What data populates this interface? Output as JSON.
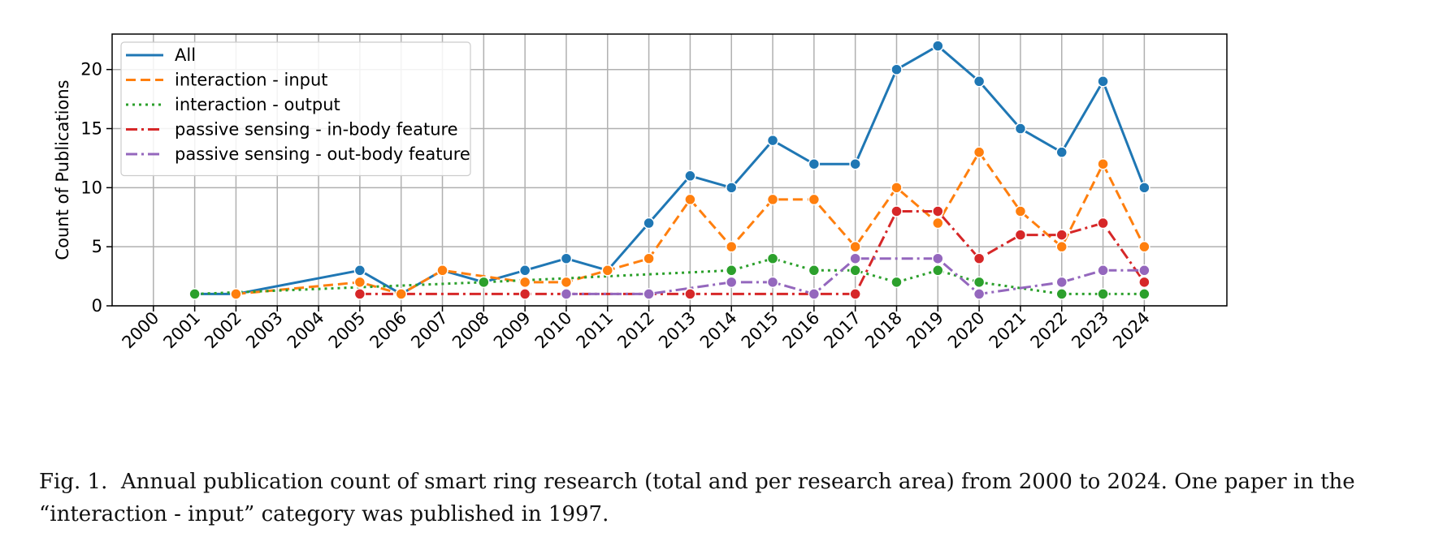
{
  "chart_data": {
    "type": "line",
    "title": "",
    "xlabel": "",
    "ylabel": "Count of Publications",
    "x_ticks": [
      "2000",
      "2001",
      "2002",
      "2003",
      "2004",
      "2005",
      "2006",
      "2007",
      "2008",
      "2009",
      "2010",
      "2011",
      "2012",
      "2013",
      "2014",
      "2015",
      "2016",
      "2017",
      "2018",
      "2019",
      "2020",
      "2021",
      "2022",
      "2023",
      "2024"
    ],
    "xlim": [
      1999,
      2026
    ],
    "ylim": [
      0,
      23
    ],
    "y_ticks": [
      "0",
      "5",
      "10",
      "15",
      "20"
    ],
    "grid": true,
    "legend_position": "upper-left",
    "series": [
      {
        "name": "All",
        "color": "#1f77b4",
        "dash": "solid",
        "x": [
          2001,
          2002,
          2005,
          2006,
          2007,
          2008,
          2009,
          2010,
          2011,
          2012,
          2013,
          2014,
          2015,
          2016,
          2017,
          2018,
          2019,
          2020,
          2021,
          2022,
          2023,
          2024
        ],
        "y": [
          1,
          1,
          3,
          1,
          3,
          2,
          3,
          4,
          3,
          7,
          11,
          10,
          14,
          12,
          12,
          20,
          22,
          19,
          15,
          13,
          19,
          10
        ]
      },
      {
        "name": "interaction - input",
        "color": "#ff7f0e",
        "dash": "dashed",
        "x": [
          2002,
          2005,
          2006,
          2007,
          2009,
          2010,
          2011,
          2012,
          2013,
          2014,
          2015,
          2016,
          2017,
          2018,
          2019,
          2020,
          2021,
          2022,
          2023,
          2024
        ],
        "y": [
          1,
          2,
          1,
          3,
          2,
          2,
          3,
          4,
          9,
          5,
          9,
          9,
          5,
          10,
          7,
          13,
          8,
          5,
          12,
          5
        ]
      },
      {
        "name": "interaction - output",
        "color": "#2ca02c",
        "dash": "dotted",
        "x": [
          2001,
          2008,
          2014,
          2015,
          2016,
          2017,
          2018,
          2019,
          2020,
          2022,
          2023,
          2024
        ],
        "y": [
          1,
          2,
          3,
          4,
          3,
          3,
          2,
          3,
          2,
          1,
          1,
          1
        ]
      },
      {
        "name": "passive sensing - in-body feature",
        "color": "#d62728",
        "dash": "dashdot",
        "x": [
          2005,
          2009,
          2013,
          2017,
          2018,
          2019,
          2020,
          2021,
          2022,
          2023,
          2024
        ],
        "y": [
          1,
          1,
          1,
          1,
          8,
          8,
          4,
          6,
          6,
          7,
          2
        ]
      },
      {
        "name": "passive sensing - out-body feature",
        "color": "#9467bd",
        "dash": "dashdot",
        "x": [
          2010,
          2012,
          2014,
          2015,
          2016,
          2017,
          2019,
          2020,
          2022,
          2023,
          2024
        ],
        "y": [
          1,
          1,
          2,
          2,
          1,
          4,
          4,
          1,
          2,
          3,
          3
        ]
      }
    ]
  },
  "caption": {
    "line1": "Fig. 1.  Annual publication count of smart ring research (total and per research area) from 2000 to 2024. One paper in the",
    "line2": "“interaction - input” category was published in 1997."
  }
}
